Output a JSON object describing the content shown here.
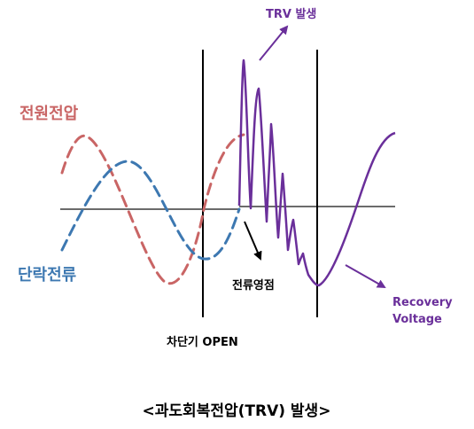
{
  "labels": {
    "source_voltage": "전원전압",
    "interrupt_current": "단락전류",
    "trv_event": "TRV 발생",
    "current_zero": "전류영점",
    "breaker_open": "차단기 OPEN",
    "recovery_voltage_line1": "Recovery",
    "recovery_voltage_line2": "Voltage",
    "caption": "<과도회복전압(TRV) 발생>"
  },
  "colors": {
    "source_voltage": "#c96565",
    "interrupt_current": "#3d78b1",
    "trv": "#6a2f9a",
    "axis": "#6b6b6b",
    "marker_line": "#000000",
    "text": "#000000"
  }
}
